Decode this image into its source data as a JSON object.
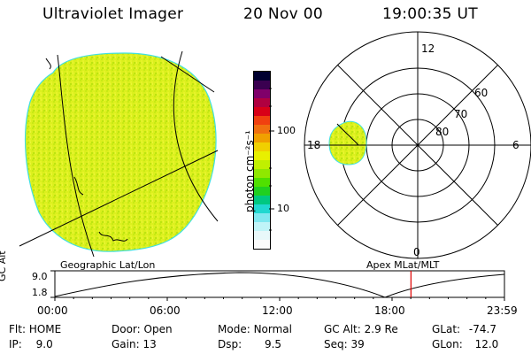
{
  "header": {
    "instrument": "Ultraviolet Imager",
    "date": "20 Nov 00",
    "time": "19:00:35 UT"
  },
  "colorbar": {
    "label": "photon cm⁻²s⁻¹",
    "tick_high": "100",
    "tick_low": "10",
    "colors": [
      "#000030",
      "#3a0050",
      "#80006a",
      "#b00040",
      "#d80018",
      "#f04010",
      "#f07010",
      "#f0a000",
      "#f0d000",
      "#e8f000",
      "#c0f000",
      "#90e800",
      "#50e000",
      "#20d020",
      "#00c880",
      "#20d8d0",
      "#80e8f0",
      "#c0f4f8",
      "#e8f8fa",
      "#fbfbfb"
    ]
  },
  "polar": {
    "labels": {
      "mlt_12": "12",
      "mlt_18": "18",
      "mlt_6": "6",
      "mlt_0": "0",
      "lat_60": "60",
      "lat_70": "70",
      "lat_80": "80"
    }
  },
  "timeline": {
    "left_label": "Geographic Lat/Lon",
    "right_label": "Apex MLat/MLT",
    "axis_label": "GC Alt",
    "y_max": "9.0",
    "y_min": "1.8",
    "ticks": [
      "00:00",
      "06:00",
      "12:00",
      "18:00",
      "23:59"
    ],
    "current_hour": 19.01
  },
  "status": {
    "flt": {
      "label": "Flt:",
      "value": "HOME"
    },
    "ip": {
      "label": "IP:",
      "value": "9.0"
    },
    "door": {
      "label": "Door:",
      "value": "Open"
    },
    "gain": {
      "label": "Gain:",
      "value": "13"
    },
    "mode": {
      "label": "Mode:",
      "value": "Normal"
    },
    "dsp": {
      "label": "Dsp:",
      "value": "9.5"
    },
    "gcalt": {
      "label": "GC Alt:",
      "value": "2.9 Re"
    },
    "seq": {
      "label": "Seq:",
      "value": "39"
    },
    "glat": {
      "label": "GLat:",
      "value": "-74.7"
    },
    "glon": {
      "label": "GLon:",
      "value": "12.0"
    }
  }
}
